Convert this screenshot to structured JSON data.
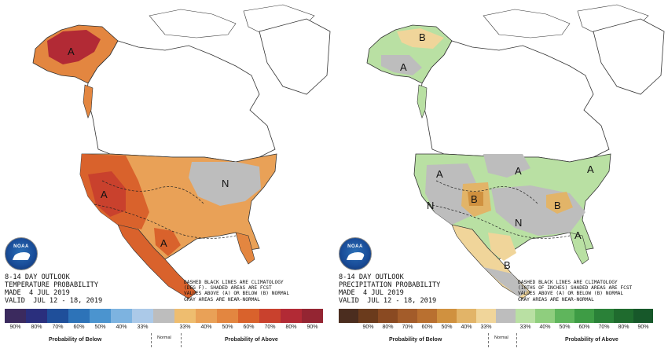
{
  "left": {
    "logo": {
      "text": "NOAA"
    },
    "title_lines": [
      "8-14 DAY OUTLOOK",
      "TEMPERATURE PROBABILITY",
      "MADE  4 JUL 2019",
      "VALID  JUL 12 - 18, 2019"
    ],
    "note_lines": [
      "DASHED BLACK LINES ARE CLIMATOLOGY",
      "(DEG F). SHADED AREAS ARE FCST",
      "VALUES ABOVE (A) OR BELOW (B) NORMAL",
      "GRAY AREAS ARE NEAR-NORMAL"
    ],
    "scale": {
      "colors": [
        "#3b2a5e",
        "#2a2f7d",
        "#1f4f9a",
        "#2d73b8",
        "#4b94cf",
        "#7db3e0",
        "#abc9e8",
        "#bdbdbd",
        "#eebd6f",
        "#e9a157",
        "#e38640",
        "#d9622c",
        "#c9412d",
        "#b22a35",
        "#942532"
      ],
      "ticks": [
        "90%",
        "80%",
        "70%",
        "60%",
        "50%",
        "40%",
        "33%",
        "",
        "33%",
        "40%",
        "50%",
        "60%",
        "70%",
        "80%",
        "90%"
      ],
      "below_label": "Probability of Below",
      "normal_label": "Normal",
      "above_label": "Probability of Above"
    },
    "markers": [
      {
        "label": "A",
        "name": "alaska-above"
      },
      {
        "label": "A",
        "name": "southwest-above"
      },
      {
        "label": "A",
        "name": "texas-above"
      },
      {
        "label": "N",
        "name": "great-lakes-normal"
      }
    ]
  },
  "right": {
    "logo": {
      "text": "NOAA"
    },
    "title_lines": [
      "8-14 DAY OUTLOOK",
      "PRECIPITATION PROBABILITY",
      "MADE  4 JUL 2019",
      "VALID  JUL 12 - 18, 2019"
    ],
    "note_lines": [
      "DASHED BLACK LINES ARE CLIMATOLOGY",
      "(10THS OF INCHES) SHADED AREAS ARE FCST",
      "VALUES ABOVE (A) OR BELOW (B) NORMAL",
      "GRAY AREAS ARE NEAR-NORMAL"
    ],
    "scale": {
      "colors": [
        "#4b2d1f",
        "#6b3b1c",
        "#8a4a22",
        "#a35c2a",
        "#b97030",
        "#d0913f",
        "#e2b468",
        "#f0d59a",
        "#bdbdbd",
        "#b9e0a3",
        "#8fce7e",
        "#5fb55c",
        "#3e9c45",
        "#2a8138",
        "#1f6b2e",
        "#17582a"
      ],
      "ticks": [
        "",
        "90%",
        "80%",
        "70%",
        "60%",
        "50%",
        "40%",
        "33%",
        "",
        "33%",
        "40%",
        "50%",
        "60%",
        "70%",
        "80%",
        "90%"
      ],
      "below_label": "Probability of Below",
      "normal_label": "Normal",
      "above_label": "Probability of Above"
    },
    "markers": [
      {
        "label": "B",
        "name": "alaska-below"
      },
      {
        "label": "A",
        "name": "alaska-above"
      },
      {
        "label": "A",
        "name": "northwest-above"
      },
      {
        "label": "N",
        "name": "great-basin-normal"
      },
      {
        "label": "B",
        "name": "colorado-below"
      },
      {
        "label": "A",
        "name": "north-central-above"
      },
      {
        "label": "A",
        "name": "northeast-above"
      },
      {
        "label": "N",
        "name": "central-normal"
      },
      {
        "label": "B",
        "name": "ohio-valley-below"
      },
      {
        "label": "A",
        "name": "southeast-above"
      },
      {
        "label": "B",
        "name": "texas-below"
      }
    ]
  }
}
